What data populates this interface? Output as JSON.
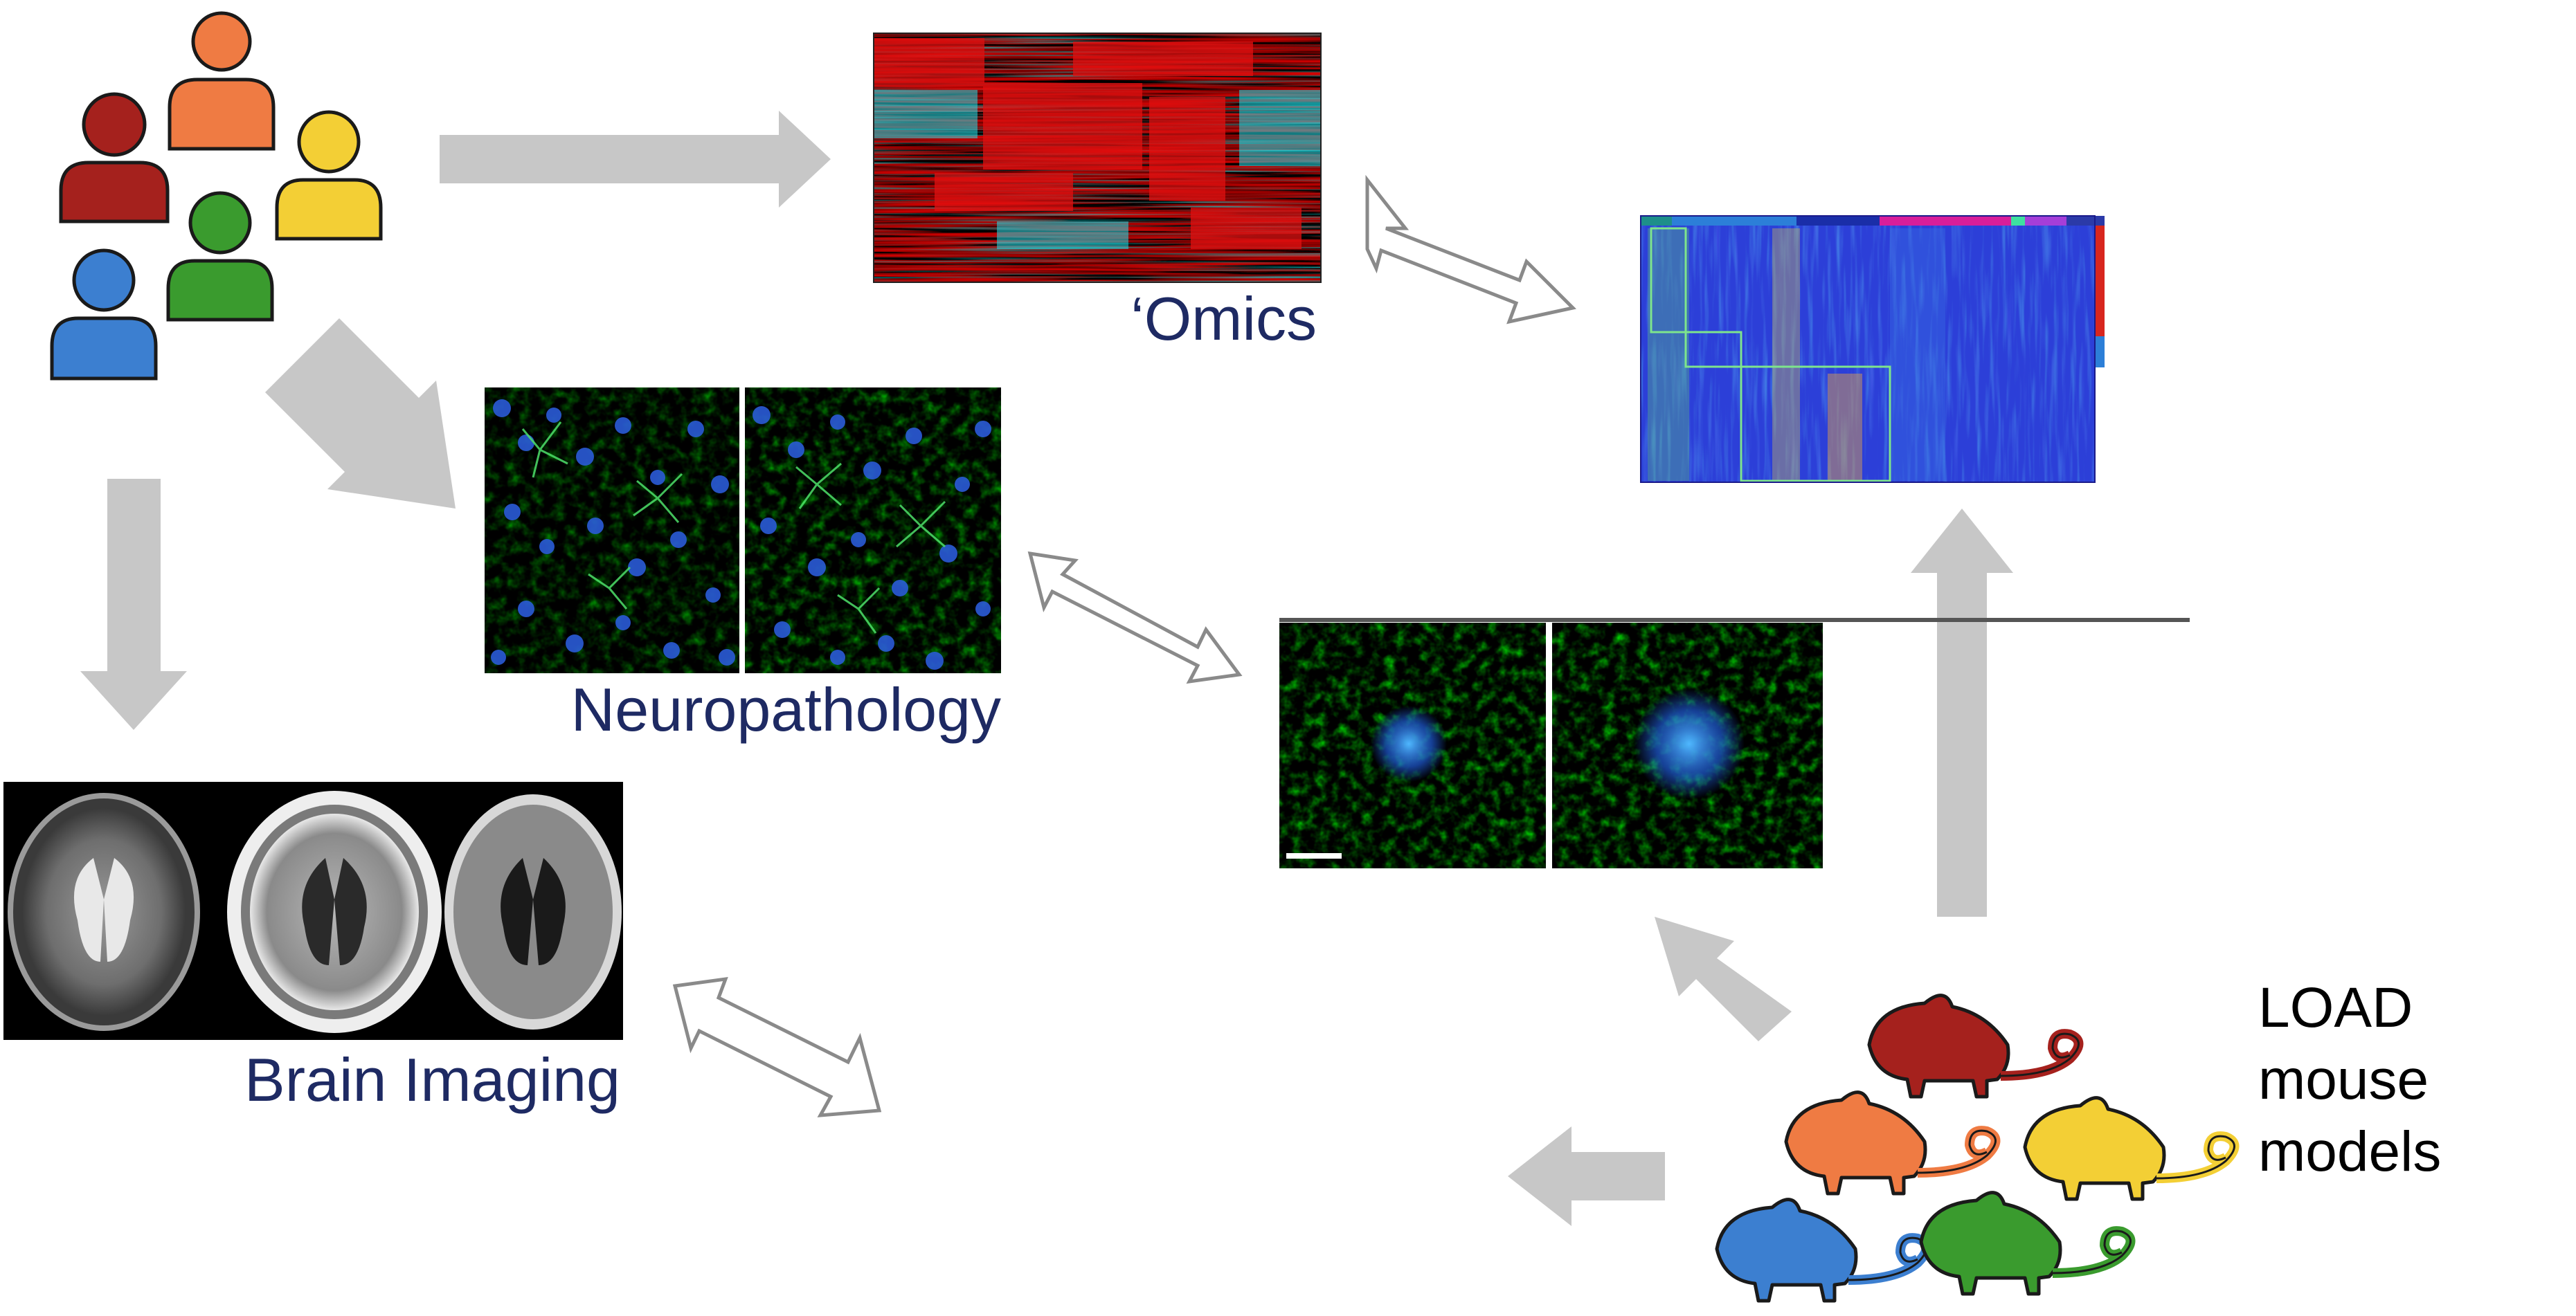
{
  "labels": {
    "omics": "‘Omics",
    "neuropathology": "Neuropathology",
    "brain_imaging": "Brain Imaging",
    "load_line1": "LOAD",
    "load_line2": "mouse",
    "load_line3": "models"
  },
  "colors": {
    "person_red": "#a5211d",
    "person_orange": "#ef7b43",
    "person_yellow": "#f3cf35",
    "person_green": "#3a9b2e",
    "person_blue": "#3c7fd0",
    "arrow_gray": "#c7c7c7",
    "label_navy": "#1e2a63"
  },
  "icons": {
    "people": "people-group-icon",
    "mice": "mouse-group-icon",
    "arrow": "block-arrow-icon",
    "double_arrow": "double-headed-arrow-icon"
  }
}
